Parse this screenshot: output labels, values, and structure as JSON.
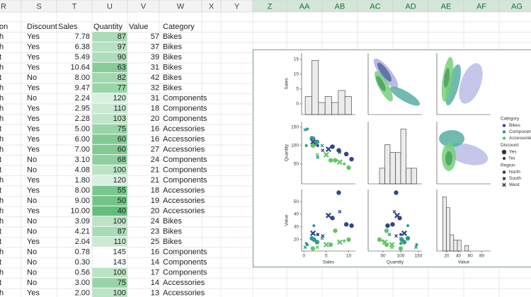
{
  "column_headers": [
    "R",
    "S",
    "T",
    "U",
    "V",
    "W",
    "X",
    "Y",
    "Z",
    "AA",
    "AB",
    "AC",
    "AD",
    "AE",
    "AF",
    "AG"
  ],
  "table": {
    "header": [
      "on",
      "Discount",
      "Sales",
      "Quantity",
      "Value",
      "Category"
    ],
    "rows": [
      [
        "h",
        "Yes",
        "7.78",
        "87",
        "57",
        "Bikes"
      ],
      [
        "h",
        "Yes",
        "6.38",
        "97",
        "37",
        "Bikes"
      ],
      [
        "t",
        "Yes",
        "5.49",
        "90",
        "39",
        "Bikes"
      ],
      [
        "h",
        "Yes",
        "10.64",
        "63",
        "31",
        "Bikes"
      ],
      [
        "t",
        "No",
        "8.00",
        "82",
        "42",
        "Bikes"
      ],
      [
        "h",
        "Yes",
        "9.47",
        "77",
        "32",
        "Bikes"
      ],
      [
        "h",
        "No",
        "2.24",
        "120",
        "31",
        "Components"
      ],
      [
        "h",
        "Yes",
        "2.95",
        "110",
        "18",
        "Components"
      ],
      [
        "h",
        "Yes",
        "2.28",
        "103",
        "20",
        "Components"
      ],
      [
        "t",
        "Yes",
        "5.00",
        "75",
        "16",
        "Accessories"
      ],
      [
        "h",
        "Yes",
        "6.00",
        "60",
        "16",
        "Accessories"
      ],
      [
        "h",
        "Yes",
        "7.00",
        "60",
        "27",
        "Accessories"
      ],
      [
        "t",
        "No",
        "3.10",
        "68",
        "24",
        "Components"
      ],
      [
        "t",
        "No",
        "4.08",
        "100",
        "21",
        "Components"
      ],
      [
        "h",
        "Yes",
        "1.80",
        "120",
        "21",
        "Components"
      ],
      [
        "t",
        "Yes",
        "8.00",
        "55",
        "18",
        "Accessories"
      ],
      [
        "h",
        "No",
        "9.00",
        "50",
        "19",
        "Accessories"
      ],
      [
        "h",
        "Yes",
        "10.00",
        "40",
        "20",
        "Accessories"
      ],
      [
        "h",
        "No",
        "3.09",
        "100",
        "24",
        "Bikes"
      ],
      [
        "t",
        "No",
        "4.21",
        "87",
        "23",
        "Bikes"
      ],
      [
        "t",
        "Yes",
        "2.04",
        "110",
        "25",
        "Bikes"
      ],
      [
        "h",
        "No",
        "0.78",
        "145",
        "16",
        "Components"
      ],
      [
        "t",
        "No",
        "0.30",
        "143",
        "14",
        "Components"
      ],
      [
        "h",
        "No",
        "0.56",
        "100",
        "17",
        "Components"
      ],
      [
        "t",
        "No",
        "3.00",
        "75",
        "14",
        "Accessories"
      ],
      [
        "h",
        "Yes",
        "2.00",
        "100",
        "13",
        "Accessories"
      ]
    ]
  },
  "pairplot": {
    "type": "pairplot",
    "variables": [
      {
        "name": "Sales",
        "xlim": [
          -0.5,
          11.5
        ],
        "ylim": [
          -3.6,
          17.1
        ],
        "xticks": [
          0,
          5,
          10
        ],
        "yticks": [
          0,
          5,
          10,
          15
        ]
      },
      {
        "name": "Quantity",
        "xlim": [
          8,
          160
        ],
        "ylim": [
          -4,
          165
        ],
        "xticks": [
          50,
          100,
          150
        ],
        "yticks": [
          50,
          100,
          150
        ]
      },
      {
        "name": "Value",
        "xlim": [
          3,
          95
        ],
        "ylim": [
          11,
          59.5
        ],
        "xticks": [
          20,
          40,
          60,
          80
        ],
        "yticks": [
          20,
          30,
          40,
          50
        ]
      }
    ],
    "legend": [
      {
        "title": "Category",
        "items": [
          {
            "label": "Bikes",
            "color": "#31468a"
          },
          {
            "label": "Components",
            "color": "#2e9a8c"
          },
          {
            "label": "Accessories",
            "color": "#5ec962"
          }
        ]
      },
      {
        "title": "Discount",
        "items": [
          {
            "label": "Yes"
          },
          {
            "label": "No"
          }
        ]
      },
      {
        "title": "Region",
        "items": [
          {
            "label": "North"
          },
          {
            "label": "South"
          },
          {
            "label": "West"
          }
        ]
      }
    ]
  }
}
